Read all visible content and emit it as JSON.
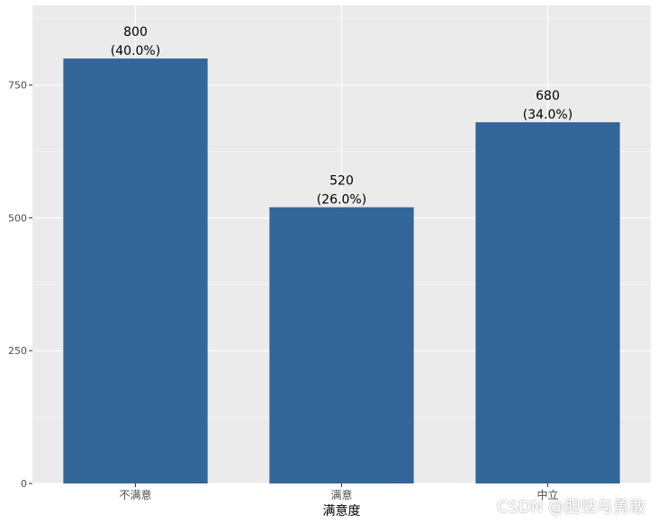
{
  "chart_data": {
    "type": "bar",
    "categories": [
      "不满意",
      "满意",
      "中立"
    ],
    "values": [
      800,
      520,
      680
    ],
    "data_labels": [
      {
        "count": "800",
        "percent": "(40.0%)"
      },
      {
        "count": "520",
        "percent": "(26.0%)"
      },
      {
        "count": "680",
        "percent": "(34.0%)"
      }
    ],
    "xlabel": "满意度",
    "ylabel": "",
    "ylim": [
      0,
      900
    ],
    "yticks": [
      0,
      250,
      500,
      750
    ],
    "grid": true,
    "colors": {
      "bar": "#336699",
      "panel": "#EBEBEB",
      "grid_major": "#FFFFFF",
      "grid_minor": "#F4F4F4",
      "axis_text": "#4D4D4D",
      "label_text": "#000000"
    }
  },
  "watermark": "CSDN @胆怯与勇敢"
}
